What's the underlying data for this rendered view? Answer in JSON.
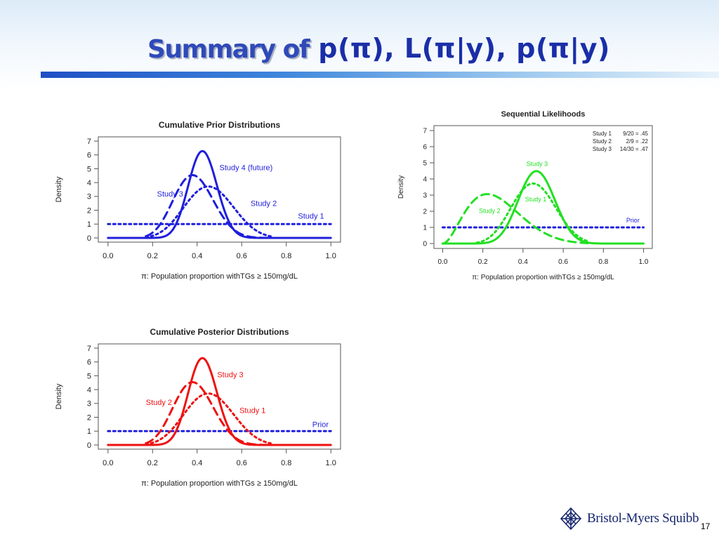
{
  "slide": {
    "title_lead": "Summary of",
    "title_formula": "p(π), L(π|y), p(π|y)",
    "page_number": "17",
    "logo_text": "Bristol-Myers Squibb",
    "logo_icon": "bms-logo-icon"
  },
  "chart_data": [
    {
      "id": "prior",
      "type": "line",
      "title": "Cumulative Prior Distributions",
      "xlabel": "π: Population proportion withTGs ≥ 150mg/dL",
      "ylabel": "Density",
      "xlim": [
        0,
        1
      ],
      "ylim": [
        0,
        7
      ],
      "xticks": [
        "0.0",
        "0.2",
        "0.4",
        "0.6",
        "0.8",
        "1.0"
      ],
      "yticks": [
        "0",
        "1",
        "2",
        "3",
        "4",
        "5",
        "6",
        "7"
      ],
      "grid": false,
      "color": "#1f1fdc",
      "series": [
        {
          "name": "Study 1",
          "style": "dotted",
          "distribution": "beta",
          "alpha": 1,
          "beta": 1,
          "x_range": [
            0,
            1
          ]
        },
        {
          "name": "Study 2",
          "style": "dotted",
          "distribution": "beta",
          "alpha": 10,
          "beta": 12,
          "x_range": [
            0.17,
            0.73
          ]
        },
        {
          "name": "Study 3",
          "style": "dashed",
          "distribution": "beta",
          "alpha": 12,
          "beta": 19,
          "x_range": [
            0.17,
            0.73
          ]
        },
        {
          "name": "Study 4 (future)",
          "style": "solid",
          "distribution": "beta",
          "alpha": 26,
          "beta": 35,
          "x_range": [
            0,
            1
          ]
        }
      ],
      "labels": [
        {
          "text": "Study 4 (future)",
          "x": 0.5,
          "y": 4.9
        },
        {
          "text": "Study 3",
          "x": 0.22,
          "y": 3.0
        },
        {
          "text": "Study 2",
          "x": 0.64,
          "y": 2.3
        },
        {
          "text": "Study 1",
          "x": 0.97,
          "y": 1.4
        }
      ]
    },
    {
      "id": "likelihood",
      "type": "line",
      "title": "Sequential Likelihoods",
      "xlabel": "π: Population proportion withTGs ≥ 150mg/dL",
      "ylabel": "Density",
      "xlim": [
        0,
        1
      ],
      "ylim": [
        0,
        7
      ],
      "xticks": [
        "0.0",
        "0.2",
        "0.4",
        "0.6",
        "0.8",
        "1.0"
      ],
      "yticks": [
        "0",
        "1",
        "2",
        "3",
        "4",
        "5",
        "6",
        "7"
      ],
      "grid": false,
      "color": "#22e022",
      "legend_position": "top-right",
      "legend": [
        {
          "name": "Study 1",
          "value": "9/20 = .45"
        },
        {
          "name": "Study 2",
          "value": "2/9 = .22"
        },
        {
          "name": "Study 3",
          "value": "14/30 = .47"
        }
      ],
      "series": [
        {
          "name": "Prior",
          "style": "dotted",
          "color": "#1f1fdc",
          "distribution": "beta",
          "alpha": 1,
          "beta": 1,
          "x_range": [
            0,
            1
          ]
        },
        {
          "name": "Study 1",
          "style": "dotted",
          "distribution": "beta",
          "alpha": 10,
          "beta": 12,
          "x_range": [
            0.17,
            0.73
          ]
        },
        {
          "name": "Study 2",
          "style": "dashed",
          "distribution": "beta",
          "alpha": 3,
          "beta": 8,
          "x_range": [
            0,
            0.73
          ]
        },
        {
          "name": "Study 3",
          "style": "solid",
          "distribution": "beta",
          "alpha": 15,
          "beta": 17,
          "x_range": [
            0,
            1
          ]
        }
      ],
      "labels": [
        {
          "text": "Study 3",
          "x": 0.47,
          "y": 4.8,
          "anchor": "middle"
        },
        {
          "text": "Study 1",
          "x": 0.41,
          "y": 2.6
        },
        {
          "text": "Study 2",
          "x": 0.18,
          "y": 1.9
        },
        {
          "text": "Prior",
          "x": 0.98,
          "y": 1.3,
          "color": "#1f1fdc"
        }
      ]
    },
    {
      "id": "posterior",
      "type": "line",
      "title": "Cumulative Posterior Distributions",
      "xlabel": "π: Population proportion withTGs ≥ 150mg/dL",
      "ylabel": "Density",
      "xlim": [
        0,
        1
      ],
      "ylim": [
        0,
        7
      ],
      "xticks": [
        "0.0",
        "0.2",
        "0.4",
        "0.6",
        "0.8",
        "1.0"
      ],
      "yticks": [
        "0",
        "1",
        "2",
        "3",
        "4",
        "5",
        "6",
        "7"
      ],
      "grid": false,
      "color": "#ee1111",
      "series": [
        {
          "name": "Prior",
          "style": "dotted",
          "color": "#1f1fdc",
          "distribution": "beta",
          "alpha": 1,
          "beta": 1,
          "x_range": [
            0,
            1
          ]
        },
        {
          "name": "Study 1",
          "style": "dotted",
          "distribution": "beta",
          "alpha": 10,
          "beta": 12,
          "x_range": [
            0.17,
            0.73
          ]
        },
        {
          "name": "Study 2",
          "style": "dashed",
          "distribution": "beta",
          "alpha": 12,
          "beta": 19,
          "x_range": [
            0.17,
            0.73
          ]
        },
        {
          "name": "Study 3",
          "style": "solid",
          "distribution": "beta",
          "alpha": 26,
          "beta": 35,
          "x_range": [
            0,
            1
          ]
        }
      ],
      "labels": [
        {
          "text": "Study 3",
          "x": 0.49,
          "y": 4.9
        },
        {
          "text": "Study 2",
          "x": 0.17,
          "y": 2.9
        },
        {
          "text": "Study 1",
          "x": 0.59,
          "y": 2.3
        },
        {
          "text": "Prior",
          "x": 0.99,
          "y": 1.3,
          "color": "#1f1fdc"
        }
      ]
    }
  ]
}
